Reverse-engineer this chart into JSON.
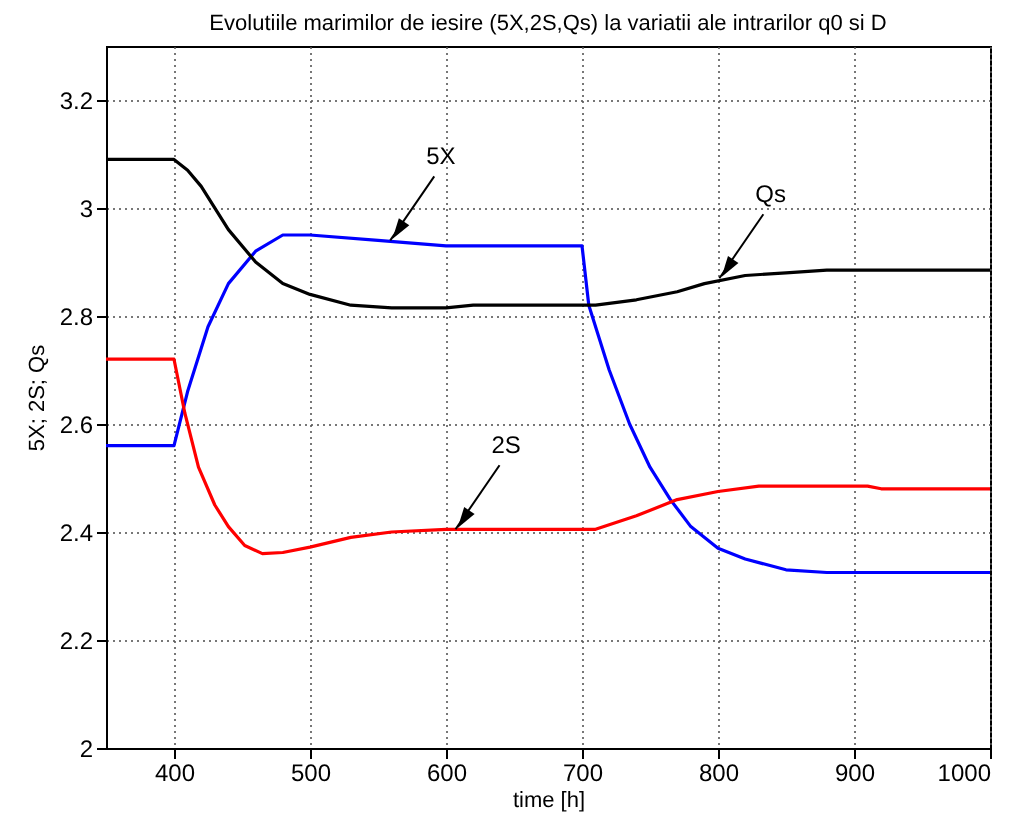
{
  "chart_data": {
    "type": "line",
    "title": "Evolutiile marimilor de iesire (5X,2S,Qs) la variatii ale intrarilor q0 si D",
    "xlabel": "time [h]",
    "ylabel": "5X; 2S; Qs",
    "xlim": [
      350,
      1000
    ],
    "xticks": [
      400,
      500,
      600,
      700,
      800,
      900,
      1000
    ],
    "ylim": [
      2,
      3.3
    ],
    "yticks": [
      2,
      2.2,
      2.4,
      2.6,
      2.8,
      3,
      3.2
    ],
    "grid": true,
    "line_style": "solid",
    "series": [
      {
        "color": "#0000ff",
        "x": [
          350,
          400,
          410,
          425,
          440,
          460,
          480,
          500,
          550,
          600,
          650,
          700,
          705,
          720,
          735,
          750,
          765,
          780,
          800,
          820,
          850,
          880,
          920,
          1000
        ],
        "values": [
          2.56,
          2.56,
          2.66,
          2.78,
          2.86,
          2.92,
          2.95,
          2.95,
          2.94,
          2.93,
          2.93,
          2.93,
          2.82,
          2.7,
          2.6,
          2.52,
          2.46,
          2.41,
          2.37,
          2.35,
          2.33,
          2.325,
          2.325,
          2.325
        ]
      },
      {
        "color": "#000000",
        "x": [
          350,
          400,
          410,
          420,
          440,
          460,
          480,
          500,
          530,
          560,
          600,
          620,
          660,
          710,
          740,
          770,
          790,
          820,
          850,
          880,
          920,
          1000
        ],
        "values": [
          3.09,
          3.09,
          3.07,
          3.04,
          2.96,
          2.9,
          2.86,
          2.84,
          2.82,
          2.815,
          2.815,
          2.82,
          2.82,
          2.82,
          2.83,
          2.845,
          2.86,
          2.875,
          2.88,
          2.885,
          2.885,
          2.885
        ]
      },
      {
        "color": "#ff0000",
        "x": [
          350,
          400,
          408,
          418,
          430,
          440,
          452,
          465,
          480,
          500,
          530,
          560,
          600,
          650,
          710,
          740,
          770,
          800,
          830,
          870,
          910,
          920,
          1000
        ],
        "values": [
          2.72,
          2.72,
          2.62,
          2.52,
          2.45,
          2.41,
          2.375,
          2.36,
          2.362,
          2.372,
          2.39,
          2.4,
          2.405,
          2.405,
          2.405,
          2.43,
          2.46,
          2.475,
          2.485,
          2.485,
          2.485,
          2.48,
          2.48
        ]
      }
    ],
    "annotations": [
      {
        "text": "5X",
        "x": 559,
        "y": 2.94
      },
      {
        "text": "Qs",
        "x": 801,
        "y": 2.87
      },
      {
        "text": "2S",
        "x": 607,
        "y": 2.405
      }
    ]
  }
}
